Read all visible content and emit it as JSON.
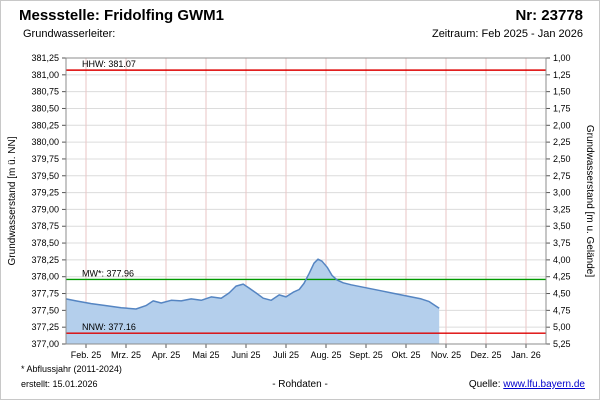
{
  "header": {
    "title": "Messstelle: Fridolfing GWM1",
    "number": "Nr: 23778",
    "aquifer_label": "Grundwasserleiter:",
    "period": "Zeitraum: Feb 2025 - Jan 2026"
  },
  "footer": {
    "note": "* Abflussjahr (2011-2024)",
    "created": "erstellt: 15.01.2026",
    "center": "- Rohdaten -",
    "source_label": "Quelle: ",
    "source_link": "www.lfu.bayern.de"
  },
  "chart_data": {
    "type": "area",
    "title": "Messstelle: Fridolfing GWM1",
    "left_axis": {
      "label": "Grundwasserstand [m ü. NN]",
      "min": 377.0,
      "max": 381.25,
      "step": 0.25,
      "ticks": [
        "381,25",
        "381,00",
        "380,75",
        "380,50",
        "380,25",
        "380,00",
        "379,75",
        "379,50",
        "379,25",
        "379,00",
        "378,75",
        "378,50",
        "378,25",
        "378,00",
        "377,75",
        "377,50",
        "377,25",
        "377,00"
      ]
    },
    "right_axis": {
      "label": "Grundwasserstand [m u. Gelände]",
      "top": 1.0,
      "bottom": 5.25,
      "ticks": [
        "1,00",
        "1,25",
        "1,50",
        "1,75",
        "2,00",
        "2,25",
        "2,50",
        "2,75",
        "3,00",
        "3,25",
        "3,50",
        "3,75",
        "4,00",
        "4,25",
        "4,50",
        "4,75",
        "5,00",
        "5,25"
      ]
    },
    "x_axis": {
      "months": 12,
      "ticks": [
        "Feb. 25",
        "Mrz. 25",
        "Apr. 25",
        "Mai 25",
        "Juni 25",
        "Juli 25",
        "Aug. 25",
        "Sept. 25",
        "Okt. 25",
        "Nov. 25",
        "Dez. 25",
        "Jan. 26"
      ]
    },
    "reference_lines": [
      {
        "name": "HHW",
        "label": "HHW: 381.07",
        "value": 381.07,
        "color": "#dd0000"
      },
      {
        "name": "MW",
        "label": "MW*: 377.96",
        "value": 377.96,
        "color": "#009900"
      },
      {
        "name": "NNW",
        "label": "NNW: 377.16",
        "value": 377.16,
        "color": "#dd0000"
      }
    ],
    "series": [
      {
        "name": "Grundwasserstand - Rohdaten",
        "line_color": "#5585c2",
        "fill_color": "#b4cfec",
        "x": [
          0.0,
          0.25,
          0.63,
          1.0,
          1.38,
          1.75,
          2.0,
          2.18,
          2.38,
          2.63,
          2.88,
          3.13,
          3.38,
          3.63,
          3.88,
          4.08,
          4.25,
          4.43,
          4.58,
          4.75,
          4.93,
          5.13,
          5.33,
          5.5,
          5.68,
          5.83,
          5.95,
          6.08,
          6.2,
          6.3,
          6.4,
          6.53,
          6.65,
          6.78,
          6.93,
          7.13,
          7.38,
          7.63,
          7.88,
          8.13,
          8.38,
          8.63,
          8.88,
          9.08,
          9.23,
          9.33
        ],
        "values": [
          377.67,
          377.64,
          377.6,
          377.57,
          377.54,
          377.52,
          377.57,
          377.64,
          377.61,
          377.65,
          377.64,
          377.67,
          377.65,
          377.7,
          377.68,
          377.76,
          377.86,
          377.89,
          377.83,
          377.76,
          377.68,
          377.65,
          377.73,
          377.7,
          377.77,
          377.81,
          377.9,
          378.05,
          378.2,
          378.26,
          378.23,
          378.14,
          378.02,
          377.95,
          377.91,
          377.88,
          377.85,
          377.82,
          377.79,
          377.76,
          377.73,
          377.7,
          377.67,
          377.63,
          377.57,
          377.53
        ]
      }
    ],
    "grid": {
      "h_color": "#dcdcdc",
      "v_color": "#eac6c6",
      "border_color": "#8c8c8c",
      "tick_color": "#555555"
    }
  }
}
